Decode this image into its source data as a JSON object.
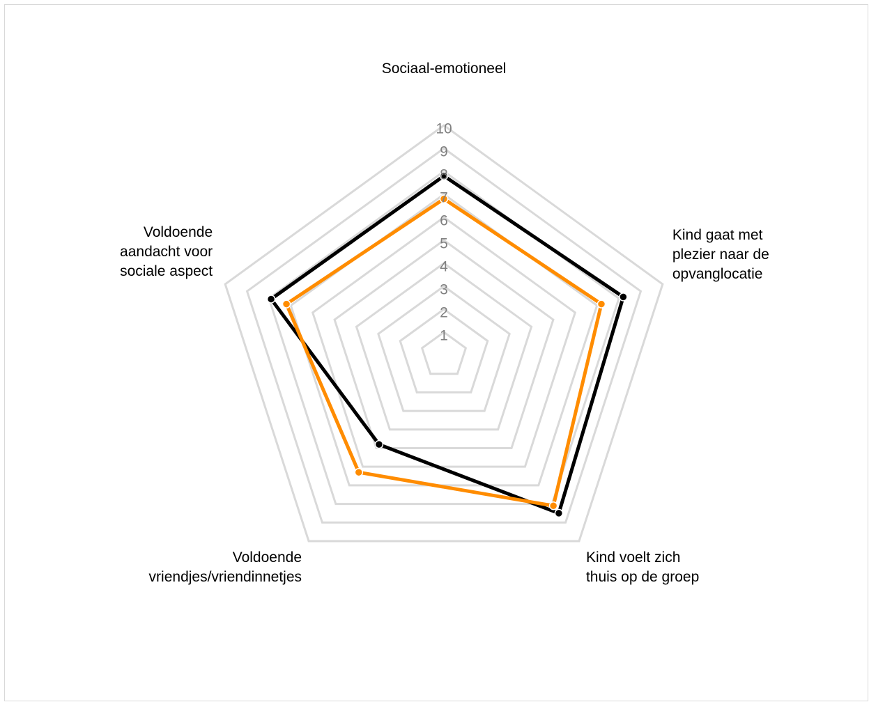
{
  "chart_data": {
    "type": "radar",
    "axes": [
      [
        "Sociaal-emotioneel"
      ],
      [
        "Kind gaat met",
        "plezier naar de",
        "opvanglocatie"
      ],
      [
        "Kind voelt zich",
        "thuis op de groep"
      ],
      [
        "Voldoende",
        "vriendjes/vriendinnetjes"
      ],
      [
        "Voldoende",
        "aandacht voor",
        "sociale aspect"
      ]
    ],
    "ticks": [
      "1",
      "2",
      "3",
      "4",
      "5",
      "6",
      "7",
      "8",
      "9",
      "10"
    ],
    "range": [
      0,
      10
    ],
    "grid": true,
    "legend": "none",
    "series": [
      {
        "color": "#000000",
        "values": [
          7.8,
          8.2,
          8.5,
          4.8,
          7.9
        ]
      },
      {
        "color": "#ff8c00",
        "values": [
          6.8,
          7.2,
          8.1,
          6.3,
          7.2
        ]
      }
    ]
  }
}
